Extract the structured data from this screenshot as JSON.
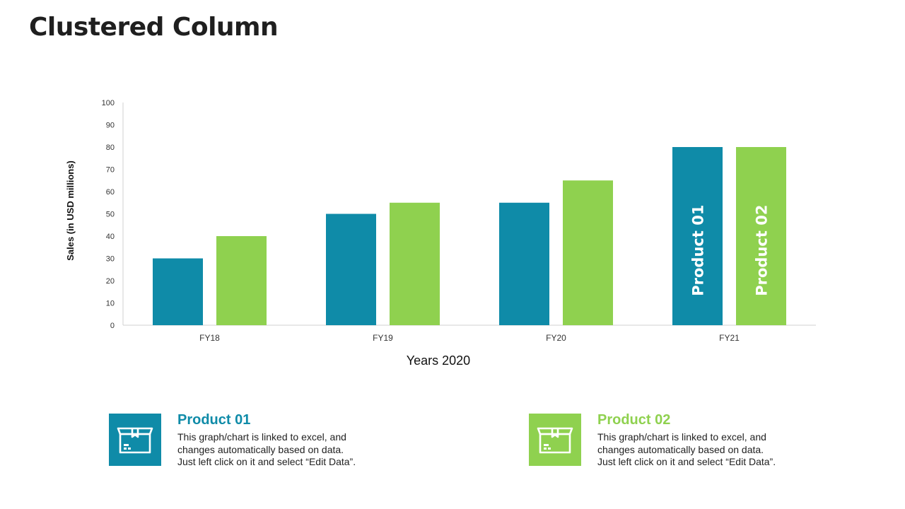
{
  "page": {
    "title": "Clustered Column"
  },
  "chart_data": {
    "type": "bar",
    "title": "",
    "xlabel": "Years 2020",
    "ylabel": "Sales (in USD millions)",
    "ylim": [
      0,
      100
    ],
    "yticks": [
      0,
      10,
      20,
      30,
      40,
      50,
      60,
      70,
      80,
      90,
      100
    ],
    "categories": [
      "FY18",
      "FY19",
      "FY20",
      "FY21"
    ],
    "series": [
      {
        "name": "Product 01",
        "values": [
          30,
          50,
          55,
          80
        ],
        "color": "#0f8ba8"
      },
      {
        "name": "Product 02",
        "values": [
          40,
          55,
          65,
          80
        ],
        "color": "#8fd14f"
      }
    ],
    "in_bar_labels": [
      "Product 01",
      "Product 02"
    ],
    "grid": false
  },
  "legend": [
    {
      "title": "Product 01",
      "color": "#0f8ba8",
      "icon": "box-icon",
      "lines": [
        "This graph/chart is linked to excel, and",
        "changes automatically based on data.",
        "Just left click on it and select “Edit Data”."
      ]
    },
    {
      "title": "Product 02",
      "color": "#8fd14f",
      "icon": "box-icon",
      "lines": [
        "This graph/chart is linked to excel, and",
        "changes automatically based on data.",
        "Just left click on it and select “Edit Data”."
      ]
    }
  ]
}
